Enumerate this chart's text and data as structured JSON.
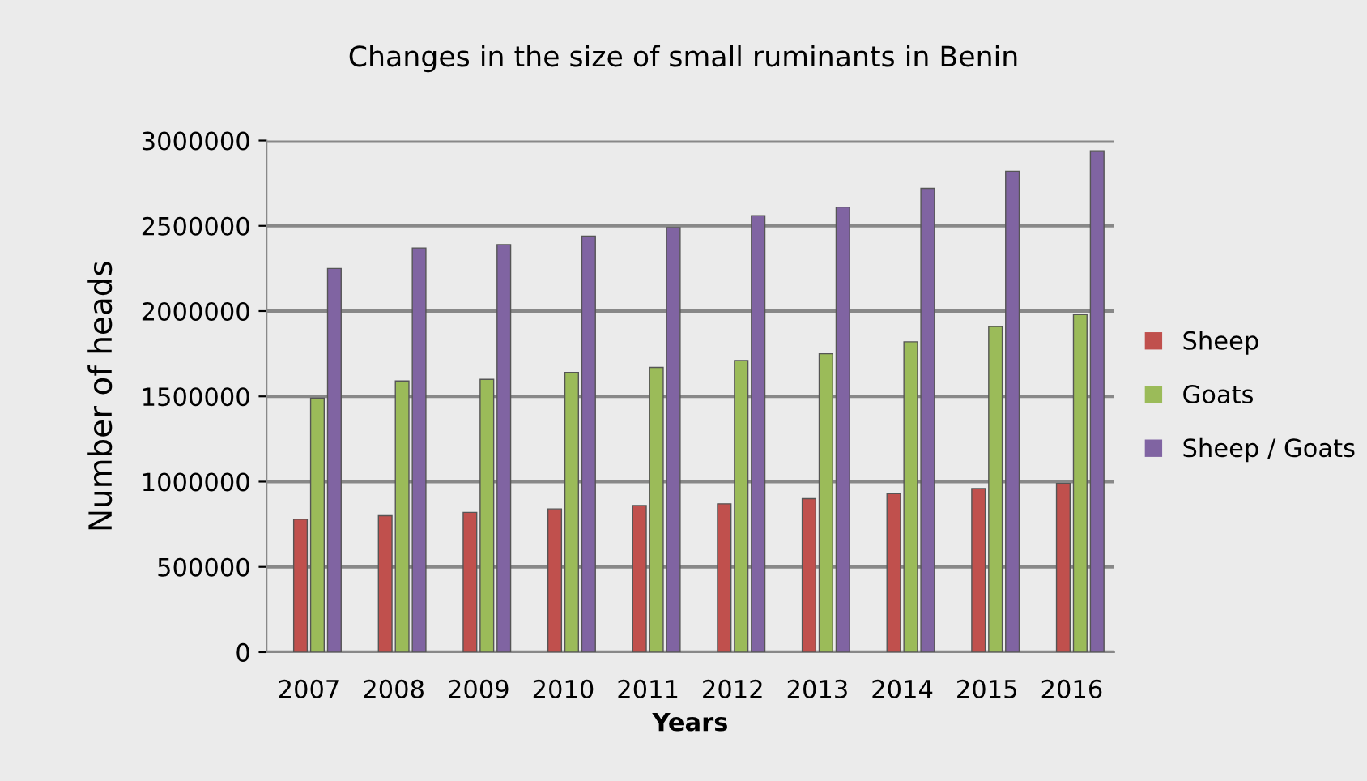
{
  "chart_data": {
    "type": "bar",
    "title": "Changes in the size of small ruminants in Benin",
    "xlabel": "Years",
    "ylabel": "Number of heads",
    "categories": [
      "2007",
      "2008",
      "2009",
      "2010",
      "2011",
      "2012",
      "2013",
      "2014",
      "2015",
      "2016"
    ],
    "series": [
      {
        "name": "Sheep",
        "color": "#c0504d",
        "values": [
          780000,
          800000,
          820000,
          840000,
          860000,
          870000,
          900000,
          930000,
          960000,
          990000
        ]
      },
      {
        "name": "Goats",
        "color": "#9bbb59",
        "values": [
          1490000,
          1590000,
          1600000,
          1640000,
          1670000,
          1710000,
          1750000,
          1820000,
          1910000,
          1980000
        ]
      },
      {
        "name": "Sheep / Goats",
        "color": "#8064a2",
        "values": [
          2250000,
          2370000,
          2390000,
          2440000,
          2490000,
          2560000,
          2610000,
          2720000,
          2820000,
          2940000
        ]
      }
    ],
    "ylim": [
      0,
      3000000
    ],
    "yticks": [
      0,
      500000,
      1000000,
      1500000,
      2000000,
      2500000,
      3000000
    ],
    "grid": "y",
    "legend": "right"
  }
}
